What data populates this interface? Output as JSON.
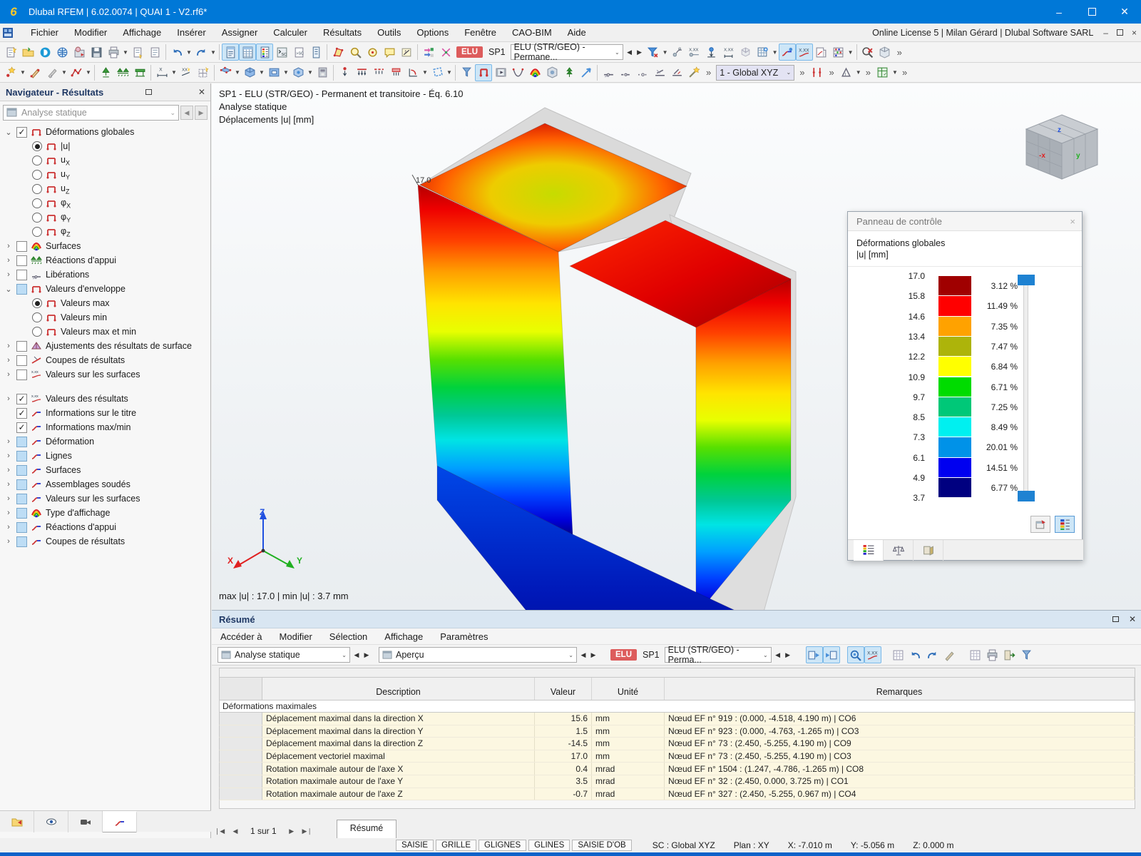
{
  "window": {
    "title": "Dlubal RFEM | 6.02.0074 | QUAI 1 - V2.rf6*",
    "license": "Online License 5 | Milan Gérard | Dlubal Software SARL"
  },
  "menus": [
    "Fichier",
    "Modifier",
    "Affichage",
    "Insérer",
    "Assigner",
    "Calculer",
    "Résultats",
    "Outils",
    "Options",
    "Fenêtre",
    "CAO-BIM",
    "Aide"
  ],
  "toolbar1": [
    {
      "i": "doc-new"
    },
    {
      "i": "folder-open"
    },
    {
      "i": "dlubal"
    },
    {
      "i": "globe-model"
    },
    {
      "i": "import-model"
    },
    {
      "i": "floppy"
    },
    {
      "i": "printer"
    },
    {
      "d": 1
    },
    {
      "i": "doc-star"
    },
    {
      "i": "doc-plain"
    },
    {
      "s": 1
    },
    {
      "i": "undo"
    },
    {
      "d": 1
    },
    {
      "i": "redo"
    },
    {
      "d": 1
    },
    {
      "s": 1
    },
    {
      "i": "panel-navigator",
      "a": 1
    },
    {
      "i": "panel-tables",
      "a": 1
    },
    {
      "i": "panel-colors",
      "a": 1
    },
    {
      "i": "console-sc"
    },
    {
      "i": "doc-sc"
    },
    {
      "i": "panel-mini"
    },
    {
      "s": 1
    },
    {
      "i": "select-poly"
    },
    {
      "i": "zoom-star"
    },
    {
      "i": "zoom-center"
    },
    {
      "i": "comment"
    },
    {
      "i": "dimension-box"
    },
    {
      "s": 1
    },
    {
      "i": "generator-1"
    },
    {
      "i": "generator-2"
    },
    {
      "badge": "ELU"
    },
    {
      "label": "SP1"
    },
    {
      "combo": "ELU (STR/GEO) - Permane...",
      "w": 158
    },
    {
      "nav": "◀"
    },
    {
      "nav": "▶"
    },
    {
      "i": "filter-x"
    },
    {
      "d": 1
    },
    {
      "i": "node-rotate"
    },
    {
      "i": "node-xxx"
    },
    {
      "i": "load-down"
    },
    {
      "i": "dim-xxx"
    },
    {
      "i": "ghost-cube"
    },
    {
      "i": "table-plus"
    },
    {
      "d": 1
    },
    {
      "i": "result-diagram",
      "a": 1
    },
    {
      "i": "result-values",
      "a": 1
    },
    {
      "i": "printout"
    },
    {
      "i": "abacus"
    },
    {
      "d": 1
    },
    {
      "s": 1
    },
    {
      "i": "zoom-cancel"
    },
    {
      "i": "cube-clear"
    },
    {
      "ov": "»"
    }
  ],
  "toolbar2": [
    {
      "i": "node-star"
    },
    {
      "d": 1
    },
    {
      "i": "pen-star"
    },
    {
      "i": "pen-gray"
    },
    {
      "d": 1
    },
    {
      "i": "polyline-star"
    },
    {
      "d": 1
    },
    {
      "s": 1
    },
    {
      "i": "support-cone"
    },
    {
      "i": "support-bench"
    },
    {
      "i": "support-table"
    },
    {
      "s": 1
    },
    {
      "i": "dim-x"
    },
    {
      "d": 1
    },
    {
      "i": "dim-xx"
    },
    {
      "i": "grid-star"
    },
    {
      "s": 1
    },
    {
      "i": "surface-blue"
    },
    {
      "d": 1
    },
    {
      "i": "solid-blue"
    },
    {
      "d": 1
    },
    {
      "i": "opening-blue"
    },
    {
      "d": 1
    },
    {
      "i": "solid-blue2"
    },
    {
      "d": 1
    },
    {
      "i": "printer-3d"
    },
    {
      "s": 1
    },
    {
      "i": "load-node"
    },
    {
      "i": "load-line"
    },
    {
      "i": "load-line2"
    },
    {
      "i": "load-solid"
    },
    {
      "i": "load-angle"
    },
    {
      "d": 1
    },
    {
      "i": "select-free"
    },
    {
      "d": 1
    },
    {
      "s": 1
    },
    {
      "i": "funnel-view"
    },
    {
      "i": "surface-bracket",
      "a": 1
    },
    {
      "i": "render-film"
    },
    {
      "i": "curve-v"
    },
    {
      "i": "rainbow-surface"
    },
    {
      "i": "cube-photo"
    },
    {
      "i": "tree-up"
    },
    {
      "i": "arrow-blue"
    },
    {
      "s": 1
    },
    {
      "i": "release-1"
    },
    {
      "i": "release-2"
    },
    {
      "i": "release-3"
    },
    {
      "i": "release-4"
    },
    {
      "i": "release-5"
    },
    {
      "i": "wand"
    },
    {
      "ov": "»"
    },
    {
      "combo": "1 - Global XYZ",
      "w": 110,
      "lav": 1
    },
    {
      "ov": "»"
    },
    {
      "i": "line-dim-red"
    },
    {
      "ov": "»"
    },
    {
      "i": "angle-tool"
    },
    {
      "d": 1
    },
    {
      "ov": "»"
    },
    {
      "i": "calc-table"
    },
    {
      "d": 1
    },
    {
      "ov": "»"
    }
  ],
  "navigator": {
    "title": "Navigateur - Résultats",
    "combo": "Analyse statique",
    "tree": [
      {
        "label": "Déformations globales",
        "exp": "open",
        "ctrl": "cb",
        "state": "checked",
        "icon": "surface"
      },
      {
        "label": "|u|",
        "ind": 1,
        "ctrl": "rb",
        "state": "on",
        "icon": "surface"
      },
      {
        "label": "u",
        "sub": "X",
        "ind": 1,
        "ctrl": "rb",
        "icon": "surface"
      },
      {
        "label": "u",
        "sub": "Y",
        "ind": 1,
        "ctrl": "rb",
        "icon": "surface"
      },
      {
        "label": "u",
        "sub": "Z",
        "ind": 1,
        "ctrl": "rb",
        "icon": "surface"
      },
      {
        "label": "φ",
        "sub": "X",
        "ind": 1,
        "ctrl": "rb",
        "icon": "surface"
      },
      {
        "label": "φ",
        "sub": "Y",
        "ind": 1,
        "ctrl": "rb",
        "icon": "surface"
      },
      {
        "label": "φ",
        "sub": "Z",
        "ind": 1,
        "ctrl": "rb",
        "icon": "surface"
      },
      {
        "label": "Surfaces",
        "exp": "closed",
        "ctrl": "cb",
        "icon": "rainbow"
      },
      {
        "label": "Réactions d'appui",
        "exp": "closed",
        "ctrl": "cb",
        "icon": "support"
      },
      {
        "label": "Libérations",
        "exp": "closed",
        "ctrl": "cb",
        "icon": "release"
      },
      {
        "label": "Valeurs d'enveloppe",
        "exp": "open",
        "ctrl": "cb",
        "state": "partial",
        "icon": "surface"
      },
      {
        "label": "Valeurs max",
        "ind": 1,
        "ctrl": "rb",
        "state": "on",
        "icon": "surface"
      },
      {
        "label": "Valeurs min",
        "ind": 1,
        "ctrl": "rb",
        "icon": "surface"
      },
      {
        "label": "Valeurs max et min",
        "ind": 1,
        "ctrl": "rb",
        "icon": "surface"
      },
      {
        "label": "Ajustements des résultats de surface",
        "exp": "closed",
        "ctrl": "cb",
        "icon": "adjust"
      },
      {
        "label": "Coupes de résultats",
        "exp": "closed",
        "ctrl": "cb",
        "icon": "cut"
      },
      {
        "label": "Valeurs sur les surfaces",
        "exp": "closed",
        "ctrl": "cb",
        "icon": "xxx"
      }
    ],
    "tree2": [
      {
        "label": "Valeurs des résultats",
        "exp": "closed",
        "ctrl": "cb",
        "state": "checked",
        "icon": "xxx"
      },
      {
        "label": "Informations sur le titre",
        "ctrl": "cb",
        "state": "checked",
        "icon": "diagram"
      },
      {
        "label": "Informations max/min",
        "ctrl": "cb",
        "state": "checked",
        "icon": "diagram"
      },
      {
        "label": "Déformation",
        "exp": "closed",
        "ctrl": "cb",
        "state": "partial",
        "icon": "diagram"
      },
      {
        "label": "Lignes",
        "exp": "closed",
        "ctrl": "cb",
        "state": "partial",
        "icon": "diagram"
      },
      {
        "label": "Surfaces",
        "exp": "closed",
        "ctrl": "cb",
        "state": "partial",
        "icon": "diagram"
      },
      {
        "label": "Assemblages soudés",
        "exp": "closed",
        "ctrl": "cb",
        "state": "partial",
        "icon": "diagram"
      },
      {
        "label": "Valeurs sur les surfaces",
        "exp": "closed",
        "ctrl": "cb",
        "state": "partial",
        "icon": "diagram"
      },
      {
        "label": "Type d'affichage",
        "exp": "closed",
        "ctrl": "cb",
        "state": "partial",
        "icon": "rainbow"
      },
      {
        "label": "Réactions d'appui",
        "exp": "closed",
        "ctrl": "cb",
        "state": "partial",
        "icon": "diagram"
      },
      {
        "label": "Coupes de résultats",
        "exp": "closed",
        "ctrl": "cb",
        "state": "partial",
        "icon": "diagram"
      }
    ]
  },
  "viewport": {
    "header_line1": "SP1 - ELU (STR/GEO) - Permanent et transitoire - Éq. 6.10",
    "header_line2": "Analyse statique",
    "header_line3": "Déplacements |u| [mm]",
    "model_peak_label": "17.0",
    "maxmin": "max |u| : 17.0 | min |u| : 3.7 mm",
    "axes": {
      "x": "X",
      "y": "Y",
      "z": "Z"
    }
  },
  "control_panel": {
    "title": "Panneau de contrôle",
    "subtitle1": "Déformations globales",
    "subtitle2": "|u| [mm]",
    "close_glyph": "×",
    "scale_values": [
      "17.0",
      "15.8",
      "14.6",
      "13.4",
      "12.2",
      "10.9",
      "9.7",
      "8.5",
      "7.3",
      "6.1",
      "4.9",
      "3.7"
    ],
    "bands": [
      {
        "color": "#A00000",
        "pct": "3.12 %"
      },
      {
        "color": "#FF0000",
        "pct": "11.49 %"
      },
      {
        "color": "#FFA200",
        "pct": "7.35 %"
      },
      {
        "color": "#ADB40A",
        "pct": "7.47 %"
      },
      {
        "color": "#FFFF00",
        "pct": "6.84 %"
      },
      {
        "color": "#00DC00",
        "pct": "6.71 %"
      },
      {
        "color": "#00C878",
        "pct": "7.25 %"
      },
      {
        "color": "#00F0F0",
        "pct": "8.49 %"
      },
      {
        "color": "#0092E8",
        "pct": "20.01 %"
      },
      {
        "color": "#0000F0",
        "pct": "14.51 %"
      },
      {
        "color": "#000080",
        "pct": "6.77 %"
      }
    ]
  },
  "summary": {
    "title": "Résumé",
    "menus": [
      "Accéder à",
      "Modifier",
      "Sélection",
      "Affichage",
      "Paramètres"
    ],
    "combo1": "Analyse statique",
    "combo2": "Aperçu",
    "elu_badge": "ELU",
    "sp_label": "SP1",
    "combo3": "ELU (STR/GEO) - Perma...",
    "table": {
      "headers": [
        "Description",
        "Valeur",
        "Unité",
        "Remarques"
      ],
      "section": "Déformations maximales",
      "rows": [
        [
          "Déplacement maximal dans la direction X",
          "15.6",
          "mm",
          "Nœud EF n° 919 : (0.000, -4.518, 4.190 m) | CO6"
        ],
        [
          "Déplacement maximal dans la direction Y",
          "1.5",
          "mm",
          "Nœud EF n° 923 : (0.000, -4.763, -1.265 m) | CO3"
        ],
        [
          "Déplacement maximal dans la direction Z",
          "-14.5",
          "mm",
          "Nœud EF n° 73 : (2.450, -5.255, 4.190 m) | CO9"
        ],
        [
          "Déplacement vectoriel maximal",
          "17.0",
          "mm",
          "Nœud EF n° 73 : (2.450, -5.255, 4.190 m) | CO3"
        ],
        [
          "Rotation maximale autour de l'axe X",
          "0.4",
          "mrad",
          "Nœud EF n° 1504 : (1.247, -4.786, -1.265 m) | CO8"
        ],
        [
          "Rotation maximale autour de l'axe Y",
          "3.5",
          "mrad",
          "Nœud EF n° 32 : (2.450, 0.000, 3.725 m) | CO1"
        ],
        [
          "Rotation maximale autour de l'axe Z",
          "-0.7",
          "mrad",
          "Nœud EF n° 327 : (2.450, -5.255, 0.967 m) | CO4"
        ]
      ]
    },
    "pagination": "1 sur 1",
    "tab": "Résumé"
  },
  "status_bar": {
    "buttons": [
      "SAISIE",
      "GRILLE",
      "GLIGNES",
      "GLINES",
      "SAISIE D'OB"
    ],
    "fields": [
      "SC : Global XYZ",
      "Plan : XY",
      "X: -7.010 m",
      "Y: -5.056 m",
      "Z: 0.000 m"
    ]
  },
  "colors": {
    "titlebar": "#0078D7",
    "elu_badge": "#DD5C5C",
    "active_toggle": "#CDE6F7",
    "table_row": "#FCF7E1",
    "bottom_strip": "#0D62C9"
  }
}
